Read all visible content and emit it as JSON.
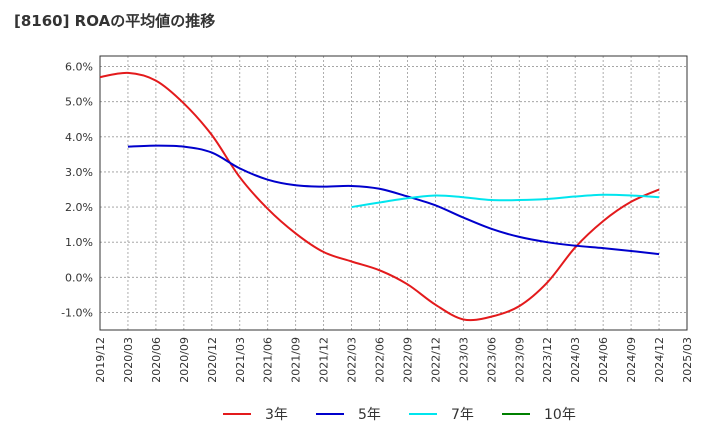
{
  "chart_data": {
    "type": "line",
    "title": "[8160]  ROAの平均値の推移",
    "xlabel": "",
    "ylabel": "",
    "ylim": [
      -1.5,
      6.3
    ],
    "yticks": [
      -1.0,
      0.0,
      1.0,
      2.0,
      3.0,
      4.0,
      5.0,
      6.0
    ],
    "ytick_labels": [
      "-1.0%",
      "0.0%",
      "1.0%",
      "2.0%",
      "3.0%",
      "4.0%",
      "5.0%",
      "6.0%"
    ],
    "xtick_labels": [
      "2019/12",
      "2020/03",
      "2020/06",
      "2020/09",
      "2020/12",
      "2021/03",
      "2021/06",
      "2021/09",
      "2021/12",
      "2022/03",
      "2022/06",
      "2022/09",
      "2022/12",
      "2023/03",
      "2023/06",
      "2023/09",
      "2023/12",
      "2024/03",
      "2024/06",
      "2024/09",
      "2024/12",
      "2025/03"
    ],
    "grid": true,
    "legend_position": "bottom",
    "series": [
      {
        "name": "3年",
        "color": "#e31a1c",
        "start_index": 0,
        "values": [
          5.7,
          5.82,
          5.6,
          4.95,
          4.05,
          2.85,
          1.95,
          1.25,
          0.72,
          0.45,
          0.2,
          -0.2,
          -0.78,
          -1.2,
          -1.12,
          -0.82,
          -0.15,
          0.85,
          1.6,
          2.15,
          2.5
        ]
      },
      {
        "name": "5年",
        "color": "#0000cc",
        "start_index": 1,
        "values": [
          3.72,
          3.75,
          3.72,
          3.55,
          3.1,
          2.78,
          2.62,
          2.58,
          2.6,
          2.52,
          2.3,
          2.05,
          1.7,
          1.38,
          1.15,
          1.0,
          0.9,
          0.83,
          0.75,
          0.66
        ]
      },
      {
        "name": "7年",
        "color": "#00e5ee",
        "start_index": 9,
        "values": [
          2.0,
          2.13,
          2.25,
          2.33,
          2.28,
          2.2,
          2.2,
          2.23,
          2.3,
          2.35,
          2.33,
          2.28
        ]
      },
      {
        "name": "10年",
        "color": "#008000",
        "start_index": 0,
        "values": []
      }
    ]
  }
}
